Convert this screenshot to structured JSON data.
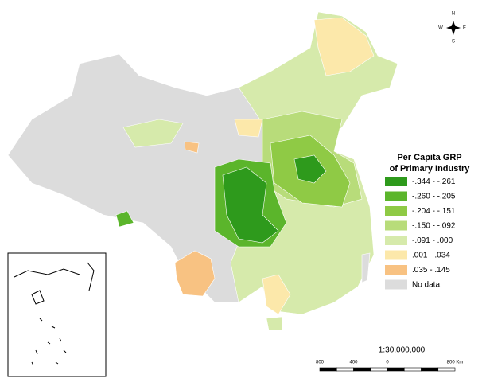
{
  "legend": {
    "title_lines": [
      "Per Capita GRP",
      "of Primary Industry"
    ],
    "items": [
      {
        "label": "-.344 - -.261",
        "color": "#2e9a1c"
      },
      {
        "label": "-.260 - -.205",
        "color": "#5bb52b"
      },
      {
        "label": "-.204 - -.151",
        "color": "#8fca45"
      },
      {
        "label": "-.150 - -.092",
        "color": "#b8dc7a"
      },
      {
        "label": "-.091 - .000",
        "color": "#d6eaab"
      },
      {
        "label": ".001 - .034",
        "color": "#fce8aa"
      },
      {
        "label": ".035 - .145",
        "color": "#f8c282"
      },
      {
        "label": "No data",
        "color": "#dcdcdc"
      }
    ]
  },
  "scale": {
    "ratio": "1:30,000,000",
    "ticks": [
      "800",
      "400",
      "0",
      "800 Km"
    ]
  },
  "compass": {
    "n": "N",
    "s": "S",
    "e": "E",
    "w": "W"
  }
}
